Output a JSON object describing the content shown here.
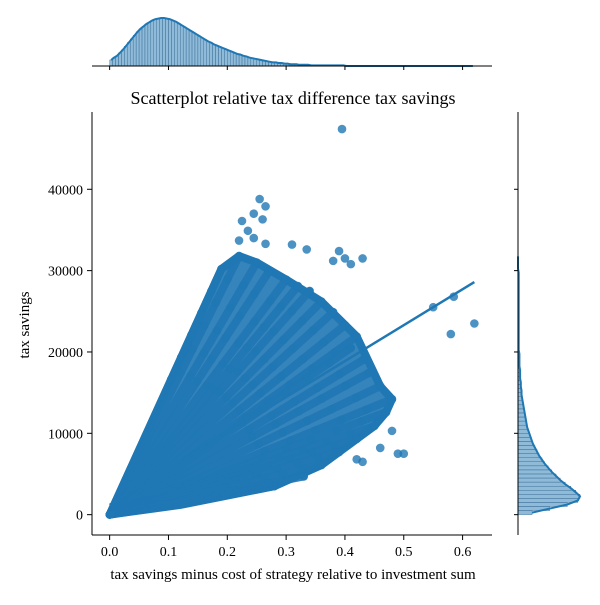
{
  "chart_data": {
    "type": "scatter",
    "title": "Scatterplot relative tax difference tax savings",
    "xlabel": "tax savings minus cost of strategy relative to investment sum",
    "ylabel": "tax savings",
    "xlim": [
      -0.03,
      0.65
    ],
    "ylim": [
      -2500,
      49500
    ],
    "x_ticks": [
      0.0,
      0.1,
      0.2,
      0.3,
      0.4,
      0.5,
      0.6
    ],
    "x_tick_labels": [
      "0.0",
      "0.1",
      "0.2",
      "0.3",
      "0.4",
      "0.5",
      "0.6"
    ],
    "y_ticks": [
      0,
      10000,
      20000,
      30000,
      40000
    ],
    "y_tick_labels": [
      "0",
      "10000",
      "20000",
      "30000",
      "40000"
    ],
    "color": "#1f77b4",
    "grid": false,
    "regression_line": {
      "x": [
        0.0,
        0.62
      ],
      "y": [
        1200,
        28600
      ]
    },
    "outliers": [
      {
        "x": 0.395,
        "y": 47400
      },
      {
        "x": 0.255,
        "y": 38800
      },
      {
        "x": 0.265,
        "y": 37900
      },
      {
        "x": 0.245,
        "y": 37000
      },
      {
        "x": 0.225,
        "y": 36100
      },
      {
        "x": 0.26,
        "y": 36300
      },
      {
        "x": 0.235,
        "y": 34900
      },
      {
        "x": 0.245,
        "y": 34000
      },
      {
        "x": 0.22,
        "y": 33700
      },
      {
        "x": 0.265,
        "y": 33300
      },
      {
        "x": 0.31,
        "y": 33200
      },
      {
        "x": 0.335,
        "y": 32600
      },
      {
        "x": 0.39,
        "y": 32400
      },
      {
        "x": 0.4,
        "y": 31500
      },
      {
        "x": 0.41,
        "y": 30800
      },
      {
        "x": 0.43,
        "y": 31500
      },
      {
        "x": 0.38,
        "y": 31200
      },
      {
        "x": 0.55,
        "y": 25500
      },
      {
        "x": 0.585,
        "y": 26800
      },
      {
        "x": 0.58,
        "y": 22200
      },
      {
        "x": 0.62,
        "y": 23500
      },
      {
        "x": 0.49,
        "y": 7500
      },
      {
        "x": 0.5,
        "y": 7500
      },
      {
        "x": 0.48,
        "y": 10300
      },
      {
        "x": 0.46,
        "y": 8200
      },
      {
        "x": 0.43,
        "y": 6500
      },
      {
        "x": 0.42,
        "y": 6800
      }
    ],
    "ray_endpoints": [
      {
        "x": 0.19,
        "y": 30200
      },
      {
        "x": 0.22,
        "y": 31800
      },
      {
        "x": 0.25,
        "y": 31000
      },
      {
        "x": 0.27,
        "y": 29800
      },
      {
        "x": 0.3,
        "y": 28900
      },
      {
        "x": 0.32,
        "y": 28100
      },
      {
        "x": 0.34,
        "y": 27500
      },
      {
        "x": 0.36,
        "y": 26200
      },
      {
        "x": 0.38,
        "y": 24900
      },
      {
        "x": 0.4,
        "y": 23300
      },
      {
        "x": 0.42,
        "y": 21900
      },
      {
        "x": 0.41,
        "y": 20500
      },
      {
        "x": 0.43,
        "y": 19000
      },
      {
        "x": 0.44,
        "y": 17400
      },
      {
        "x": 0.46,
        "y": 15800
      },
      {
        "x": 0.48,
        "y": 14200
      },
      {
        "x": 0.47,
        "y": 12600
      },
      {
        "x": 0.45,
        "y": 10900
      },
      {
        "x": 0.42,
        "y": 9300
      },
      {
        "x": 0.39,
        "y": 7700
      },
      {
        "x": 0.36,
        "y": 6100
      },
      {
        "x": 0.33,
        "y": 4700
      },
      {
        "x": 0.28,
        "y": 3500
      }
    ],
    "marginal_x_hist": {
      "bin_edges_start": 0.0,
      "bin_width": 0.005,
      "counts": [
        10,
        14,
        17,
        22,
        27,
        33,
        39,
        45,
        51,
        57,
        62,
        66,
        70,
        73,
        76,
        78,
        79,
        80,
        80,
        79,
        78,
        76,
        74,
        71,
        68,
        65,
        62,
        59,
        56,
        53,
        50,
        47,
        44,
        41,
        39,
        36,
        34,
        32,
        30,
        28,
        26,
        24,
        22,
        20,
        19,
        17,
        16,
        14,
        13,
        12,
        11,
        10,
        9,
        8,
        7,
        6,
        6,
        5,
        5,
        4,
        4,
        3,
        3,
        3,
        2,
        2,
        2,
        2,
        1,
        1,
        1,
        1,
        1,
        1,
        1,
        1,
        1,
        1,
        1,
        1,
        0,
        0,
        0,
        0,
        0,
        0,
        0,
        0,
        0,
        0,
        0,
        0,
        0,
        0,
        0,
        0,
        0,
        0,
        0,
        0,
        0,
        0,
        0,
        0,
        0,
        0,
        0,
        0,
        0,
        0,
        0,
        0,
        0,
        0,
        0,
        0,
        0,
        0,
        0,
        0,
        0,
        0,
        0,
        0
      ]
    },
    "marginal_y_hist": {
      "bin_edges_start": 0,
      "bin_width": 500,
      "counts": [
        20,
        45,
        70,
        85,
        88,
        82,
        75,
        67,
        60,
        54,
        48,
        43,
        38,
        34,
        30,
        27,
        24,
        21,
        19,
        17,
        15,
        13,
        12,
        11,
        10,
        9,
        8,
        7,
        6,
        5,
        5,
        4,
        4,
        3,
        3,
        3,
        2,
        2,
        2,
        2,
        1,
        1,
        1,
        1,
        1,
        1,
        1,
        1,
        1,
        1,
        1,
        1,
        1,
        1,
        1,
        1,
        1,
        1,
        1,
        1,
        0,
        0,
        0,
        0
      ]
    }
  }
}
